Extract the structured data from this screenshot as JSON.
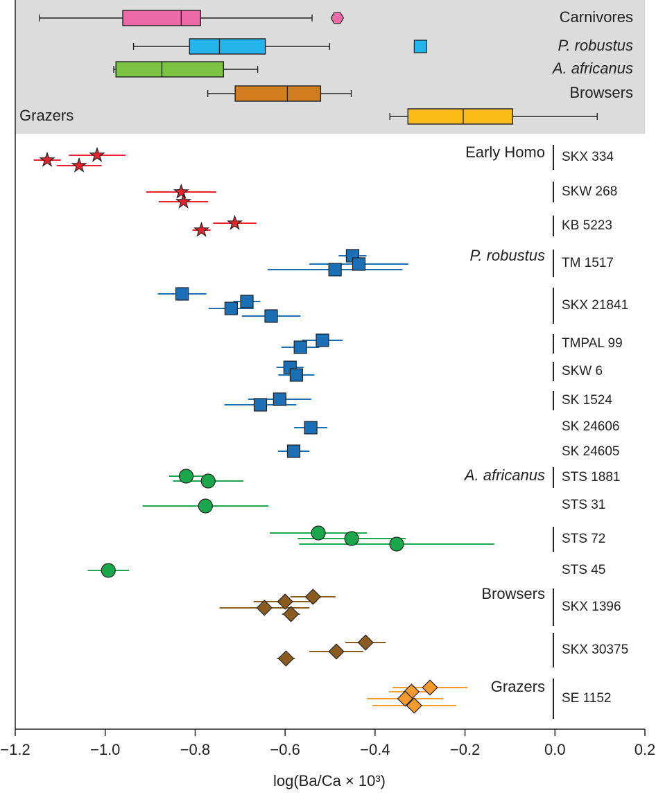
{
  "chart_data": [
    {
      "type": "box",
      "xlim": [
        -1.2,
        0.2
      ],
      "series": [
        {
          "name": "Carnivores",
          "color": "#ec6aa8",
          "whisker_low": -1.146,
          "q1": -0.961,
          "median": -0.831,
          "q3": -0.788,
          "whisker_high": -0.54,
          "outliers": [
            -0.484
          ],
          "outlier_marker": "hexagon",
          "label_side": "right"
        },
        {
          "name": "P. robustus",
          "color": "#22b4ea",
          "whisker_low": -0.937,
          "q1": -0.8125,
          "median": -0.746,
          "q3": -0.644,
          "whisker_high": -0.501,
          "outliers": [
            -0.299
          ],
          "outlier_marker": "square",
          "label_side": "right",
          "italic": true
        },
        {
          "name": "A. africanus",
          "color": "#7cc243",
          "whisker_low": -0.981,
          "q1": -0.976,
          "median": -0.874,
          "q3": -0.737,
          "whisker_high": -0.661,
          "outliers": [],
          "label_side": "right",
          "italic": true
        },
        {
          "name": "Browsers",
          "color": "#d07d1f",
          "whisker_low": -0.772,
          "q1": -0.711,
          "median": -0.595,
          "q3": -0.521,
          "whisker_high": -0.453,
          "outliers": [],
          "label_side": "right"
        },
        {
          "name": "Grazers",
          "color": "#f9bb14",
          "whisker_low": -0.367,
          "q1": -0.327,
          "median": -0.204,
          "q3": -0.094,
          "whisker_high": 0.094,
          "outliers": [],
          "label_side": "left"
        }
      ]
    },
    {
      "type": "scatter",
      "xlabel": "log(Ba/Ca × 10³)",
      "xlim": [
        -1.2,
        0.2
      ],
      "xticks": [
        {
          "value": -1.2,
          "label": "−1.2"
        },
        {
          "value": -1.0,
          "label": "−1.0"
        },
        {
          "value": -0.8,
          "label": "−0.8"
        },
        {
          "value": -0.6,
          "label": "−0.6"
        },
        {
          "value": -0.4,
          "label": "−0.4"
        },
        {
          "value": -0.2,
          "label": "−0.2"
        },
        {
          "value": 0,
          "label": "0.0"
        },
        0.2
      ],
      "groups": [
        {
          "name": "Early Homo",
          "color": "#e8222a",
          "marker": "star",
          "specimens": [
            {
              "name": "SKX 334",
              "values": [
                -1.018,
                -1.129,
                -1.058
              ],
              "errors": [
                0.063,
                0.03,
                0.05
              ]
            },
            {
              "name": "SKW 268",
              "values": [
                -0.831,
                -0.826
              ],
              "errors": [
                0.078,
                0.055
              ]
            },
            {
              "name": "KB 5223",
              "values": [
                -0.712,
                -0.786
              ],
              "errors": [
                0.048,
                0.02
              ]
            }
          ]
        },
        {
          "name": "P. robustus",
          "color": "#1a6fb5",
          "marker": "square",
          "italic": true,
          "specimens": [
            {
              "name": "TM 1517",
              "values": [
                -0.45,
                -0.436,
                -0.489
              ],
              "errors": [
                0.031,
                0.11,
                0.15
              ]
            },
            {
              "name": "SKX 21841",
              "values": [
                -0.829,
                -0.685,
                -0.72,
                -0.631
              ],
              "errors": [
                0.054,
                0.03,
                0.05,
                0.065
              ]
            },
            {
              "name": "TMPAL 99",
              "values": [
                -0.517,
                -0.566
              ],
              "errors": [
                0.045,
                0.042
              ]
            },
            {
              "name": "SKW 6",
              "values": [
                -0.589,
                -0.575
              ],
              "errors": [
                0.03,
                0.04
              ]
            },
            {
              "name": "SK 1524",
              "values": [
                -0.612,
                -0.655
              ],
              "errors": [
                0.07,
                0.08
              ]
            },
            {
              "name": "SK 24606",
              "values": [
                -0.543
              ],
              "errors": [
                0.037
              ]
            },
            {
              "name": "SK 24605",
              "values": [
                -0.581
              ],
              "errors": [
                0.035
              ]
            }
          ]
        },
        {
          "name": "A. africanus",
          "color": "#1aa64a",
          "marker": "circle",
          "italic": true,
          "specimens": [
            {
              "name": "STS 1881",
              "values": [
                -0.82,
                -0.771
              ],
              "errors": [
                0.038,
                0.078
              ]
            },
            {
              "name": "STS 31",
              "values": [
                -0.777
              ],
              "errors": [
                0.14
              ]
            },
            {
              "name": "STS 72",
              "values": [
                -0.526,
                -0.452,
                -0.352
              ],
              "errors": [
                0.108,
                0.12,
                0.217
              ]
            },
            {
              "name": "STS 45",
              "values": [
                -0.993
              ],
              "errors": [
                0.046
              ]
            }
          ]
        },
        {
          "name": "Browsers",
          "color": "#8b5c1e",
          "marker": "diamond",
          "specimens": [
            {
              "name": "SKX 1396",
              "values": [
                -0.538,
                -0.6,
                -0.646,
                -0.587
              ],
              "errors": [
                0.05,
                0.07,
                0.1,
                0.02
              ]
            },
            {
              "name": "SKX 30375",
              "values": [
                -0.421,
                -0.486,
                -0.598
              ],
              "errors": [
                0.045,
                0.06,
                0.02
              ]
            }
          ]
        },
        {
          "name": "Grazers",
          "color": "#f39b2f",
          "marker": "diamond",
          "specimens": [
            {
              "name": "SE 1152",
              "values": [
                -0.278,
                -0.319,
                -0.333,
                -0.313
              ],
              "errors": [
                0.083,
                0.05,
                0.085,
                0.093
              ]
            }
          ]
        }
      ]
    }
  ]
}
